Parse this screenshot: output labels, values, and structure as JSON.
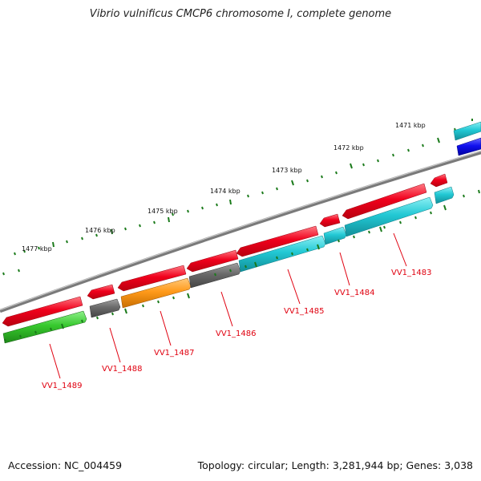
{
  "title": "Vibrio vulnificus CMCP6 chromosome I, complete genome",
  "footer": {
    "accession": "Accession: NC_004459",
    "summary": "Topology: circular; Length: 3,281,944 bp; Genes: 3,038"
  },
  "colors": {
    "forward_cds": "#e8001a",
    "reverse_cds": "#22c8d4",
    "gray": "#6a6a6a",
    "orange": "#ff9a1a",
    "green": "#37c82e",
    "blue": "#1010ee",
    "label": "#e0000f",
    "tick": "#1a7a1a",
    "backbone": "#8a8a8a"
  },
  "kbp_labels": [
    "1471 kbp",
    "1472 kbp",
    "1473 kbp",
    "1474 kbp",
    "1475 kbp",
    "1476 kbp",
    "1477 kbp"
  ],
  "gene_labels": [
    "VV1_1483",
    "VV1_1484",
    "VV1_1485",
    "VV1_1486",
    "VV1_1487",
    "VV1_1488",
    "VV1_1489"
  ]
}
